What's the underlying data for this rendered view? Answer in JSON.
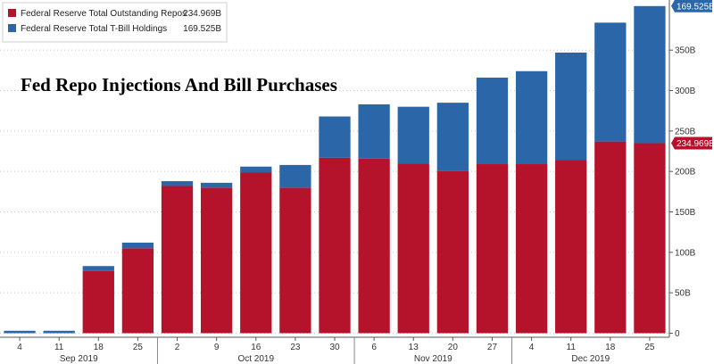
{
  "chart_data": {
    "type": "bar",
    "stacked": true,
    "title": "Fed Repo Injections And Bill Purchases",
    "x": [
      "4",
      "11",
      "18",
      "25",
      "2",
      "9",
      "16",
      "23",
      "30",
      "6",
      "13",
      "20",
      "27",
      "4",
      "11",
      "18",
      "25"
    ],
    "months": [
      {
        "label": "Sep 2019",
        "first": 0,
        "last": 3
      },
      {
        "label": "Oct 2019",
        "first": 4,
        "last": 8
      },
      {
        "label": "Nov 2019",
        "first": 9,
        "last": 12
      },
      {
        "label": "Dec 2019",
        "first": 13,
        "last": 16
      }
    ],
    "series": [
      {
        "name": "Federal Reserve Total Outstanding Repos",
        "legend_value": "234.969B",
        "color": "#b5122b",
        "values": [
          0,
          0,
          77,
          105,
          182,
          180,
          199,
          180,
          217,
          216,
          210,
          201,
          209,
          209,
          214,
          237,
          234.969
        ]
      },
      {
        "name": "Federal Reserve Total T-Bill Holdings",
        "legend_value": "169.525B",
        "color": "#2b67a8",
        "values": [
          3,
          3,
          6,
          7,
          6,
          6,
          7,
          28,
          51,
          67,
          70,
          84,
          107,
          115,
          133,
          147,
          169.525
        ]
      }
    ],
    "yticks": [
      "0",
      "50B",
      "100B",
      "150B",
      "200B",
      "250B",
      "300B",
      "350B"
    ],
    "ytick_values": [
      0,
      50,
      100,
      150,
      200,
      250,
      300,
      350
    ],
    "ylim": [
      -5,
      412
    ],
    "y_axis_position": "right",
    "grid": "horizontal dotted",
    "last_value_flags": [
      "169.525B",
      "234.969B"
    ],
    "legend_position": "top-left"
  }
}
